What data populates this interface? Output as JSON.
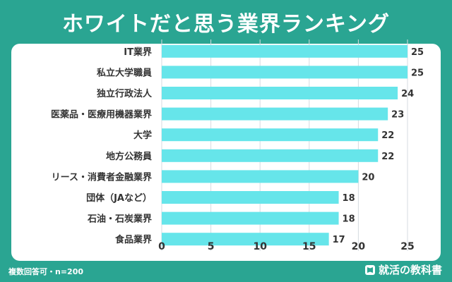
{
  "chart_data": {
    "type": "bar",
    "orientation": "horizontal",
    "title": "ホワイトだと思う業界ランキング",
    "categories": [
      "IT業界",
      "私立大学職員",
      "独立行政法人",
      "医薬品・医療用機器業界",
      "大学",
      "地方公務員",
      "リース・消費者金融業界",
      "団体（JAなど）",
      "石油・石炭業界",
      "食品業界"
    ],
    "values": [
      25,
      25,
      24,
      23,
      22,
      22,
      20,
      18,
      18,
      17
    ],
    "xlim": [
      0,
      25
    ],
    "xticks": [
      "0",
      "5",
      "10",
      "15",
      "20",
      "25"
    ],
    "grid": true,
    "bar_color": "#66e5ea"
  },
  "footer": {
    "note": "複数回答可・n=200",
    "brand": "就活の教科書"
  },
  "colors": {
    "background": "#2aa592",
    "panel": "#ffffff",
    "grid": "#d5dbe0",
    "text": "#333333"
  }
}
